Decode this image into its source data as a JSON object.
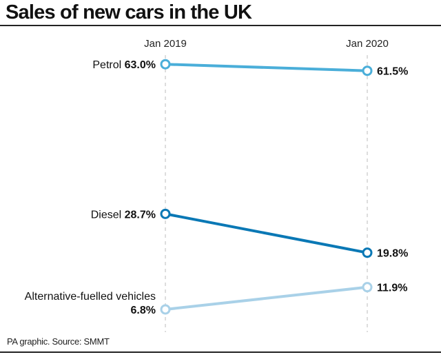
{
  "chart_data": {
    "type": "line",
    "title": "Sales of new cars in the UK",
    "categories": [
      "Jan 2019",
      "Jan 2020"
    ],
    "unit": "%",
    "series": [
      {
        "name": "Petrol",
        "values": [
          63.0,
          61.5
        ],
        "labels": [
          "63.0%",
          "61.5%"
        ],
        "color": "#4aaed9"
      },
      {
        "name": "Diesel",
        "values": [
          28.7,
          19.8
        ],
        "labels": [
          "28.7%",
          "19.8%"
        ],
        "color": "#0a78b5"
      },
      {
        "name": "Alternative-fuelled vehicles",
        "values": [
          6.8,
          11.9
        ],
        "labels": [
          "6.8%",
          "11.9%"
        ],
        "color": "#a9d1e8"
      }
    ],
    "grid": false,
    "source": "PA graphic. Source: SMMT"
  }
}
